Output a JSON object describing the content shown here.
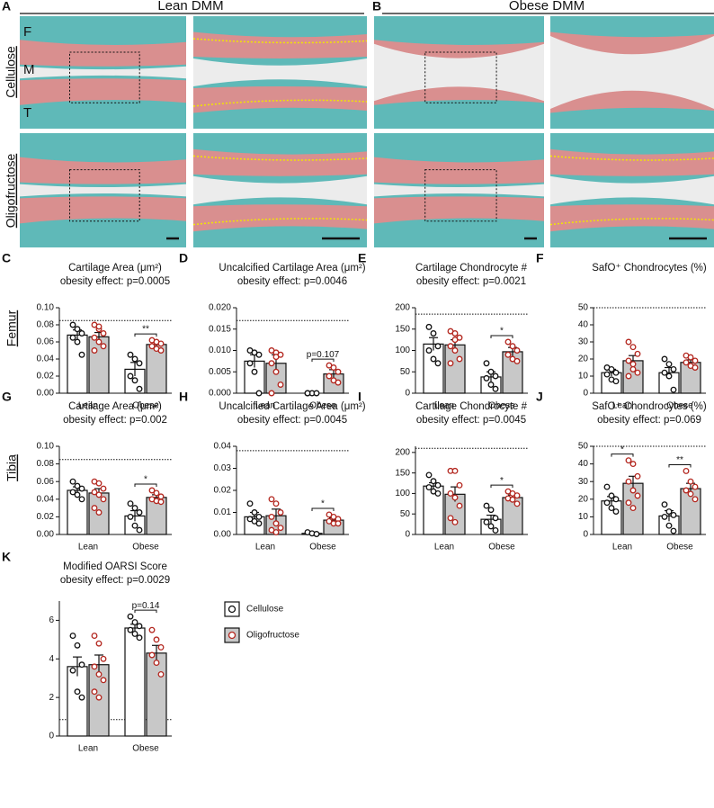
{
  "figure": {
    "panel_a": "A",
    "panel_b": "B",
    "lean_header": "Lean DMM",
    "obese_header": "Obese DMM",
    "row_cellulose": "Cellulose",
    "row_oligofructose": "Oligofructose",
    "label_f": "F",
    "label_m": "M",
    "label_t": "T",
    "row_femur": "Femur",
    "row_tibia": "Tibia"
  },
  "legend": [
    {
      "name": "Cellulose",
      "color": "#ffffff",
      "point_color": "#111111"
    },
    {
      "name": "Oligofructose",
      "color": "#c8c8c8",
      "point_color": "#b3261e"
    }
  ],
  "chart_data": [
    {
      "type": "bar",
      "letter": "C",
      "title": "Cartilage Area (μm²)",
      "subtitle": "obesity effect: p=0.0005",
      "categories": [
        "Lean",
        "Obese"
      ],
      "ylim": [
        0,
        0.1
      ],
      "yticks": [
        {
          "value": 0,
          "label": "0.00"
        },
        {
          "value": 0.02,
          "label": "0.02"
        },
        {
          "value": 0.04,
          "label": "0.04"
        },
        {
          "value": 0.06,
          "label": "0.06"
        },
        {
          "value": 0.08,
          "label": "0.08"
        },
        {
          "value": 0.1,
          "label": "0.10"
        }
      ],
      "reference": 0.085,
      "series": [
        {
          "values": [
            0.068,
            0.028
          ],
          "errors": [
            0.006,
            0.008
          ],
          "points": [
            [
              0.08,
              0.075,
              0.07,
              0.065,
              0.06,
              0.045
            ],
            [
              0.045,
              0.04,
              0.035,
              0.02,
              0.015,
              0.005
            ]
          ]
        },
        {
          "values": [
            0.066,
            0.057
          ],
          "errors": [
            0.005,
            0.003
          ],
          "points": [
            [
              0.08,
              0.075,
              0.07,
              0.065,
              0.06,
              0.055,
              0.05,
              0.078
            ],
            [
              0.062,
              0.06,
              0.058,
              0.055,
              0.052,
              0.05
            ]
          ]
        }
      ],
      "annotations": [
        {
          "category": "Obese",
          "label": "**"
        }
      ]
    },
    {
      "type": "bar",
      "letter": "D",
      "title": "Uncalcified Cartilage Area (μm²)",
      "subtitle": "obesity effect: p=0.0046",
      "categories": [
        "Lean",
        "Obese"
      ],
      "ylim": [
        0,
        0.02
      ],
      "yticks": [
        {
          "value": 0,
          "label": "0.000"
        },
        {
          "value": 0.005,
          "label": "0.005"
        },
        {
          "value": 0.01,
          "label": "0.010"
        },
        {
          "value": 0.015,
          "label": "0.015"
        },
        {
          "value": 0.02,
          "label": "0.020"
        }
      ],
      "reference": 0.017,
      "series": [
        {
          "values": [
            0.0075,
            0
          ],
          "errors": [
            0.0015,
            0
          ],
          "points": [
            [
              0.01,
              0.0095,
              0.009,
              0.007,
              0.005,
              0
            ],
            [
              0,
              0,
              0,
              0
            ]
          ]
        },
        {
          "values": [
            0.007,
            0.0045
          ],
          "errors": [
            0.002,
            0.001
          ],
          "points": [
            [
              0.01,
              0.0095,
              0.009,
              0.007,
              0.005,
              0.002,
              0,
              0.0085
            ],
            [
              0.0065,
              0.006,
              0.005,
              0.004,
              0.003,
              0.0025
            ]
          ]
        }
      ],
      "annotations": [
        {
          "category": "Obese",
          "label": "p=0.107"
        }
      ]
    },
    {
      "type": "bar",
      "letter": "E",
      "title": "Cartilage Chondrocyte #",
      "subtitle": "obesity effect: p=0.0021",
      "categories": [
        "Lean",
        "Obese"
      ],
      "ylim": [
        0,
        200
      ],
      "yticks": [
        0,
        50,
        100,
        150,
        200
      ],
      "reference": 185,
      "series": [
        {
          "values": [
            115,
            38
          ],
          "errors": [
            15,
            12
          ],
          "points": [
            [
              155,
              140,
              110,
              100,
              80,
              70
            ],
            [
              70,
              50,
              40,
              35,
              20,
              10
            ]
          ]
        },
        {
          "values": [
            113,
            97
          ],
          "errors": [
            12,
            10
          ],
          "points": [
            [
              145,
              140,
              130,
              110,
              100,
              80,
              70,
              125
            ],
            [
              120,
              110,
              100,
              90,
              80,
              75
            ]
          ]
        }
      ],
      "annotations": [
        {
          "category": "Obese",
          "label": "*"
        }
      ]
    },
    {
      "type": "bar",
      "letter": "F",
      "title": "SafO⁺ Chondrocytes (%)",
      "categories": [
        "Lean",
        "Obese"
      ],
      "ylim": [
        0,
        50
      ],
      "yticks": [
        0,
        10,
        20,
        30,
        40,
        50
      ],
      "reference": 50,
      "series": [
        {
          "values": [
            12,
            12
          ],
          "errors": [
            2,
            3
          ],
          "points": [
            [
              15,
              14,
              12,
              11,
              8,
              7
            ],
            [
              20,
              17,
              14,
              12,
              10,
              2
            ]
          ]
        },
        {
          "values": [
            19,
            18
          ],
          "errors": [
            3,
            1.5
          ],
          "points": [
            [
              30,
              27,
              23,
              19,
              17,
              12,
              10,
              14
            ],
            [
              22,
              21,
              19,
              18,
              16,
              15
            ]
          ]
        }
      ]
    },
    {
      "type": "bar",
      "letter": "G",
      "title": "Cartilage Area (μm²)",
      "subtitle": "obesity effect: p=0.002",
      "categories": [
        "Lean",
        "Obese"
      ],
      "ylim": [
        0,
        0.1
      ],
      "yticks": [
        {
          "value": 0,
          "label": "0.00"
        },
        {
          "value": 0.02,
          "label": "0.02"
        },
        {
          "value": 0.04,
          "label": "0.04"
        },
        {
          "value": 0.06,
          "label": "0.06"
        },
        {
          "value": 0.08,
          "label": "0.08"
        },
        {
          "value": 0.1,
          "label": "0.10"
        }
      ],
      "reference": 0.085,
      "series": [
        {
          "values": [
            0.05,
            0.021
          ],
          "errors": [
            0.004,
            0.006
          ],
          "points": [
            [
              0.06,
              0.055,
              0.052,
              0.048,
              0.045,
              0.04
            ],
            [
              0.035,
              0.03,
              0.025,
              0.02,
              0.01,
              0.005
            ]
          ]
        },
        {
          "values": [
            0.047,
            0.042
          ],
          "errors": [
            0.005,
            0.003
          ],
          "points": [
            [
              0.06,
              0.058,
              0.052,
              0.048,
              0.045,
              0.04,
              0.03,
              0.025
            ],
            [
              0.05,
              0.047,
              0.043,
              0.04,
              0.038,
              0.037
            ]
          ]
        }
      ],
      "annotations": [
        {
          "category": "Obese",
          "label": "*"
        }
      ]
    },
    {
      "type": "bar",
      "letter": "H",
      "title": "Uncalcified Cartilage Area (μm²)",
      "subtitle": "obesity effect: p=0.0045",
      "categories": [
        "Lean",
        "Obese"
      ],
      "ylim": [
        0,
        0.04
      ],
      "yticks": [
        {
          "value": 0,
          "label": "0.00"
        },
        {
          "value": 0.01,
          "label": "0.01"
        },
        {
          "value": 0.02,
          "label": "0.02"
        },
        {
          "value": 0.03,
          "label": "0.03"
        },
        {
          "value": 0.04,
          "label": "0.04"
        }
      ],
      "reference": 0.038,
      "series": [
        {
          "values": [
            0.008,
            0.0005
          ],
          "errors": [
            0.002,
            0.0003
          ],
          "points": [
            [
              0.014,
              0.01,
              0.008,
              0.007,
              0.006,
              0.005
            ],
            [
              0.001,
              0.0005,
              0.0002
            ]
          ]
        },
        {
          "values": [
            0.0085,
            0.0065
          ],
          "errors": [
            0.003,
            0.001
          ],
          "points": [
            [
              0.016,
              0.014,
              0.01,
              0.008,
              0.005,
              0.003,
              0.002,
              0.001
            ],
            [
              0.009,
              0.008,
              0.007,
              0.006,
              0.005,
              0.005
            ]
          ]
        }
      ],
      "annotations": [
        {
          "category": "Obese",
          "label": "*"
        }
      ]
    },
    {
      "type": "bar",
      "letter": "I",
      "title": "Cartilage Chondrocyte #",
      "subtitle": "obesity effect: p=0.0045",
      "categories": [
        "Lean",
        "Obese"
      ],
      "ylim": [
        0,
        215
      ],
      "yticks": [
        0,
        50,
        100,
        150,
        200
      ],
      "reference": 210,
      "series": [
        {
          "values": [
            118,
            37
          ],
          "errors": [
            8,
            10
          ],
          "points": [
            [
              145,
              130,
              120,
              115,
              105,
              100
            ],
            [
              70,
              60,
              40,
              30,
              20,
              10
            ]
          ]
        },
        {
          "values": [
            98,
            90
          ],
          "errors": [
            18,
            6
          ],
          "points": [
            [
              155,
              155,
              120,
              100,
              90,
              70,
              40,
              30
            ],
            [
              105,
              100,
              95,
              88,
              85,
              75
            ]
          ]
        }
      ],
      "annotations": [
        {
          "category": "Obese",
          "label": "*"
        }
      ]
    },
    {
      "type": "bar",
      "letter": "J",
      "title": "SafO⁺ Chondrocytes (%)",
      "subtitle": "obesity effect: p=0.069",
      "categories": [
        "Lean",
        "Obese"
      ],
      "ylim": [
        0,
        50
      ],
      "yticks": [
        0,
        10,
        20,
        30,
        40,
        50
      ],
      "reference": 50,
      "series": [
        {
          "values": [
            19,
            10.5
          ],
          "errors": [
            2.5,
            3
          ],
          "points": [
            [
              27,
              22,
              20,
              18,
              15,
              13
            ],
            [
              17,
              13,
              11,
              10,
              5,
              2
            ]
          ]
        },
        {
          "values": [
            29,
            26
          ],
          "errors": [
            4,
            3
          ],
          "points": [
            [
              42,
              40,
              33,
              30,
              25,
              22,
              18,
              15
            ],
            [
              36,
              30,
              27,
              25,
              23,
              20
            ]
          ]
        }
      ],
      "annotations": [
        {
          "category": "Lean",
          "label": "*"
        },
        {
          "category": "Obese",
          "label": "**"
        }
      ]
    },
    {
      "type": "bar",
      "letter": "K",
      "title": "Modified OARSI Score",
      "subtitle": "obesity effect: p=0.0029",
      "categories": [
        "Lean",
        "Obese"
      ],
      "ylim": [
        0,
        7
      ],
      "yticks": [
        0,
        2,
        4,
        6
      ],
      "reference": 0.85,
      "series": [
        {
          "values": [
            3.6,
            5.6
          ],
          "errors": [
            0.5,
            0.2
          ],
          "points": [
            [
              5.2,
              4.7,
              3.7,
              3.4,
              2.3,
              2
            ],
            [
              6.2,
              5.9,
              5.7,
              5.5,
              5.3,
              5.1
            ]
          ]
        },
        {
          "values": [
            3.7,
            4.3
          ],
          "errors": [
            0.5,
            0.4
          ],
          "points": [
            [
              5.2,
              4.8,
              4,
              3.6,
              3.2,
              2.9,
              2.3,
              2
            ],
            [
              5.5,
              5,
              4.6,
              4.2,
              3.8,
              3.2
            ]
          ]
        }
      ],
      "annotations": [
        {
          "category": "Obese",
          "label": "p=0.14"
        }
      ]
    }
  ]
}
